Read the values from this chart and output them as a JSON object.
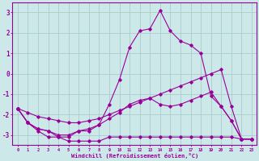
{
  "xlabel": "Windchill (Refroidissement éolien,°C)",
  "background_color": "#cce8e8",
  "grid_color": "#aacccc",
  "line_color": "#990099",
  "hours": [
    0,
    1,
    2,
    3,
    4,
    5,
    6,
    7,
    8,
    9,
    10,
    11,
    12,
    13,
    14,
    15,
    16,
    17,
    18,
    19,
    20,
    21,
    22,
    23
  ],
  "curve_main": [
    -1.7,
    -2.4,
    -2.7,
    -2.8,
    -3.1,
    -3.1,
    -2.8,
    -2.8,
    -2.5,
    -1.5,
    -0.3,
    1.3,
    2.1,
    2.2,
    3.1,
    2.1,
    1.6,
    1.4,
    1.0,
    -1.1,
    -1.6,
    -2.3,
    -3.2,
    -3.2
  ],
  "curve_flat": [
    -1.7,
    -2.4,
    -2.8,
    -3.1,
    -3.1,
    -3.3,
    -3.3,
    -3.3,
    -3.3,
    -3.1,
    -3.1,
    -3.1,
    -3.1,
    -3.1,
    -3.1,
    -3.1,
    -3.1,
    -3.1,
    -3.1,
    -3.1,
    -3.1,
    -3.1,
    -3.2,
    -3.2
  ],
  "curve_mid": [
    -1.7,
    -2.4,
    -2.7,
    -2.8,
    -3.0,
    -3.0,
    -2.8,
    -2.7,
    -2.5,
    -2.2,
    -1.9,
    -1.5,
    -1.3,
    -1.2,
    -1.5,
    -1.6,
    -1.5,
    -1.3,
    -1.1,
    -0.9,
    -1.6,
    -2.3,
    -3.2,
    -3.2
  ],
  "curve_linear": [
    -1.7,
    -1.9,
    -2.1,
    -2.2,
    -2.3,
    -2.4,
    -2.4,
    -2.3,
    -2.2,
    -2.0,
    -1.8,
    -1.6,
    -1.4,
    -1.2,
    -1.0,
    -0.8,
    -0.6,
    -0.4,
    -0.2,
    0.0,
    0.2,
    -1.6,
    -3.2,
    -3.2
  ],
  "xlim": [
    -0.5,
    23.5
  ],
  "ylim": [
    -3.5,
    3.5
  ],
  "xtick_labels": [
    "0",
    "1",
    "2",
    "3",
    "4",
    "5",
    "6",
    "7",
    "8",
    "9",
    "10",
    "11",
    "12",
    "13",
    "14",
    "15",
    "16",
    "17",
    "18",
    "19",
    "20",
    "21",
    "22",
    "23"
  ],
  "ytick_values": [
    -3,
    -2,
    -1,
    0,
    1,
    2,
    3
  ]
}
